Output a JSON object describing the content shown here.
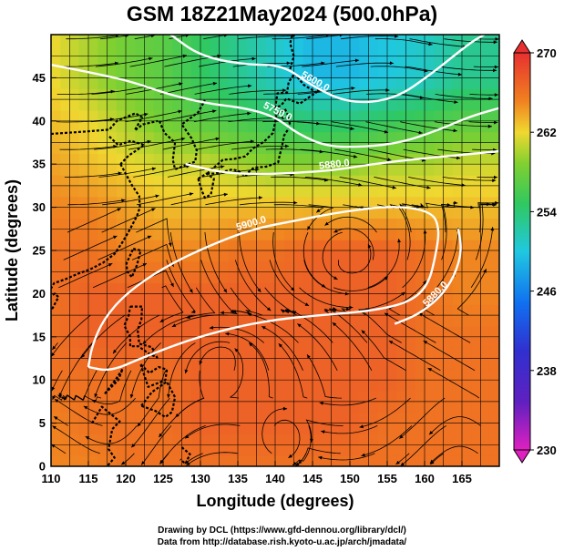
{
  "title": "GSM 18Z21May2024 (500.0hPa)",
  "footer": {
    "line1": "Drawing by DCL (https://www.gfd-dennou.org/library/dcl/)",
    "line2": "Data from http://database.rish.kyoto-u.ac.jp/arch/jmadata/"
  },
  "colors": {
    "cold": "#e020c0",
    "cool": "#3030d0",
    "mid_blue": "#1070f0",
    "cyan": "#20c8e0",
    "green": "#40c840",
    "yellow": "#f0d830",
    "orange": "#f08020",
    "warm": "#e83030",
    "contour": "#ffffff",
    "streamline": "#000000"
  },
  "chart_data": {
    "type": "heatmap",
    "title": "GSM 18Z21May2024 (500.0hPa)",
    "xlabel": "Longitude (degrees)",
    "ylabel": "Latitude  (degrees)",
    "xlim": [
      110,
      170
    ],
    "ylim": [
      0,
      50
    ],
    "x_ticks": [
      110,
      115,
      120,
      125,
      130,
      135,
      140,
      145,
      150,
      155,
      160,
      165
    ],
    "y_ticks": [
      0,
      5,
      10,
      15,
      20,
      25,
      30,
      35,
      40,
      45
    ],
    "grid": true,
    "colorbar": {
      "min": 230,
      "max": 270,
      "ticks": [
        230,
        238,
        246,
        254,
        262,
        270
      ],
      "placement": "right"
    },
    "field_samples": [
      {
        "lat": 45,
        "values_by_lon": [
          262,
          260,
          258,
          257,
          255,
          253,
          251,
          249,
          249,
          250,
          251,
          253
        ]
      },
      {
        "lat": 40,
        "values_by_lon": [
          263,
          262,
          260,
          258,
          257,
          256,
          255,
          254,
          254,
          255,
          256,
          257
        ]
      },
      {
        "lat": 35,
        "values_by_lon": [
          264,
          263,
          262,
          261,
          261,
          260,
          259,
          259,
          259,
          260,
          260,
          261
        ]
      },
      {
        "lat": 30,
        "values_by_lon": [
          265,
          265,
          264,
          263,
          263,
          263,
          263,
          263,
          263,
          263,
          263,
          263
        ]
      },
      {
        "lat": 25,
        "values_by_lon": [
          266,
          266,
          265,
          265,
          265,
          266,
          266,
          267,
          267,
          267,
          266,
          265
        ]
      },
      {
        "lat": 20,
        "values_by_lon": [
          266,
          267,
          267,
          267,
          267,
          267,
          267,
          267,
          267,
          267,
          266,
          265
        ]
      },
      {
        "lat": 15,
        "values_by_lon": [
          266,
          267,
          267,
          267,
          267,
          267,
          267,
          267,
          267,
          267,
          266,
          266
        ]
      },
      {
        "lat": 10,
        "values_by_lon": [
          266,
          266,
          266,
          266,
          267,
          267,
          267,
          267,
          267,
          267,
          266,
          266
        ]
      },
      {
        "lat": 5,
        "values_by_lon": [
          265,
          266,
          266,
          266,
          267,
          267,
          267,
          267,
          267,
          266,
          266,
          266
        ]
      },
      {
        "lat": 0,
        "values_by_lon": [
          265,
          265,
          266,
          266,
          266,
          266,
          266,
          266,
          266,
          266,
          266,
          266
        ]
      }
    ],
    "contour_labels": [
      "5600.0",
      "5750.0",
      "5880.0",
      "5900.0",
      "5880.0"
    ],
    "contours": [
      {
        "label": "5600.0",
        "points": [
          [
            126,
            50
          ],
          [
            130,
            47.5
          ],
          [
            136,
            46.5
          ],
          [
            141,
            46.5
          ],
          [
            145,
            44
          ],
          [
            150,
            42
          ],
          [
            156,
            42.5
          ],
          [
            161,
            45.5
          ],
          [
            166,
            49
          ],
          [
            168,
            50
          ]
        ]
      },
      {
        "label": "5750.0",
        "points": [
          [
            110,
            46.5
          ],
          [
            116,
            45.5
          ],
          [
            121,
            44.5
          ],
          [
            126,
            43
          ],
          [
            131,
            42
          ],
          [
            136,
            41.5
          ],
          [
            140,
            40.5
          ],
          [
            143,
            38.5
          ],
          [
            147,
            37
          ],
          [
            152,
            37
          ],
          [
            157,
            37.5
          ],
          [
            162,
            39
          ],
          [
            166,
            40.5
          ],
          [
            170,
            41.5
          ]
        ]
      },
      {
        "label": "5880.0",
        "points": [
          [
            128,
            35
          ],
          [
            133,
            34
          ],
          [
            138,
            33.8
          ],
          [
            143,
            34
          ],
          [
            148,
            34.3
          ],
          [
            153,
            35
          ],
          [
            158,
            35.5
          ],
          [
            164,
            36
          ],
          [
            170,
            36.5
          ]
        ]
      },
      {
        "label": "5900.0",
        "points": [
          [
            115,
            11.5
          ],
          [
            115.5,
            14
          ],
          [
            117,
            17
          ],
          [
            120,
            20
          ],
          [
            125,
            23
          ],
          [
            131,
            25.5
          ],
          [
            137,
            27.5
          ],
          [
            143,
            28.5
          ],
          [
            149,
            29.5
          ],
          [
            156,
            30.2
          ],
          [
            161,
            29.5
          ],
          [
            162,
            27.5
          ],
          [
            161.5,
            24.5
          ],
          [
            160.5,
            21
          ],
          [
            158,
            19
          ],
          [
            153,
            18
          ],
          [
            146,
            17.5
          ],
          [
            140,
            17
          ],
          [
            134,
            16
          ],
          [
            128,
            14.5
          ],
          [
            122,
            12.5
          ],
          [
            118,
            11
          ],
          [
            115,
            11.5
          ]
        ]
      },
      {
        "label": "5880.0",
        "points": [
          [
            156,
            16.5
          ],
          [
            159,
            17.5
          ],
          [
            162,
            19.5
          ],
          [
            164,
            22
          ],
          [
            165,
            25
          ],
          [
            164.5,
            27.5
          ]
        ]
      }
    ]
  }
}
